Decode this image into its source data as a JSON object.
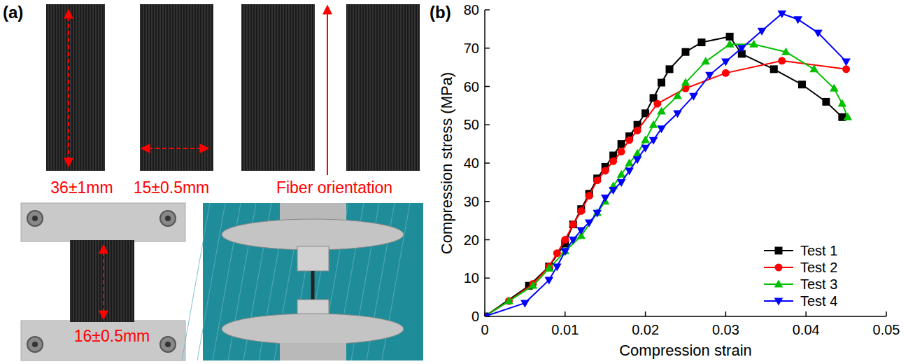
{
  "panels": {
    "a": "(a)",
    "b": "(b)"
  },
  "photos": {
    "length_label": "36±1mm",
    "width_label": "15±0.5mm",
    "fiber_label": "Fiber orientation",
    "gauge_label": "16±0.5mm"
  },
  "chart_data": {
    "type": "line",
    "x_label": "Compression strain",
    "y_label": "Compression stress (MPa)",
    "xlim": [
      0,
      0.05
    ],
    "xticks": [
      0,
      0.01,
      0.02,
      0.03,
      0.04,
      0.05
    ],
    "ylim": [
      0,
      80
    ],
    "yticks": [
      0,
      10,
      20,
      30,
      40,
      50,
      60,
      70,
      80
    ],
    "grid": false,
    "legend": "lower right",
    "series": [
      {
        "name": "Test 1",
        "color": "#000000",
        "marker": "square",
        "line_style": "solid",
        "x": [
          0,
          0.0055,
          0.008,
          0.01,
          0.011,
          0.012,
          0.013,
          0.014,
          0.015,
          0.016,
          0.017,
          0.018,
          0.019,
          0.02,
          0.021,
          0.022,
          0.023,
          0.025,
          0.027,
          0.0305,
          0.032,
          0.036,
          0.0395,
          0.0425,
          0.0445
        ],
        "values": [
          0,
          8,
          13,
          19,
          24,
          28,
          32,
          36,
          39,
          42,
          45,
          47,
          50,
          53,
          57,
          61,
          64.5,
          69,
          71.5,
          73,
          68.5,
          64.5,
          60.5,
          56,
          52
        ]
      },
      {
        "name": "Test 2",
        "color": "#ff0000",
        "marker": "circle",
        "line_style": "solid",
        "x": [
          0,
          0.003,
          0.006,
          0.008,
          0.009,
          0.01,
          0.011,
          0.012,
          0.013,
          0.014,
          0.015,
          0.016,
          0.017,
          0.018,
          0.019,
          0.0215,
          0.025,
          0.03,
          0.037,
          0.045
        ],
        "values": [
          0,
          4,
          8.5,
          13,
          16.5,
          20,
          24,
          27.5,
          31.5,
          35.5,
          38,
          40.5,
          43,
          46,
          48.5,
          55.5,
          59.5,
          63.5,
          66.7,
          64.5
        ]
      },
      {
        "name": "Test 3",
        "color": "#00c000",
        "marker": "triangle-up",
        "line_style": "solid",
        "x": [
          0,
          0.003,
          0.006,
          0.008,
          0.01,
          0.012,
          0.014,
          0.015,
          0.016,
          0.017,
          0.018,
          0.019,
          0.02,
          0.021,
          0.022,
          0.024,
          0.025,
          0.0275,
          0.0305,
          0.0335,
          0.0375,
          0.041,
          0.0435,
          0.0445,
          0.0452
        ],
        "values": [
          0,
          4,
          8,
          12.5,
          17,
          21,
          27,
          30,
          34,
          37,
          40,
          42.5,
          46,
          50,
          53.5,
          57.5,
          61,
          66.5,
          71,
          71,
          69,
          64.5,
          59.5,
          55.5,
          52
        ]
      },
      {
        "name": "Test 4",
        "color": "#0000ff",
        "marker": "triangle-down",
        "line_style": "solid",
        "x": [
          0,
          0.005,
          0.008,
          0.009,
          0.01,
          0.011,
          0.012,
          0.013,
          0.014,
          0.015,
          0.016,
          0.017,
          0.018,
          0.019,
          0.02,
          0.021,
          0.022,
          0.024,
          0.026,
          0.028,
          0.03,
          0.032,
          0.0345,
          0.037,
          0.039,
          0.0415,
          0.045
        ],
        "values": [
          0,
          3.5,
          9.5,
          13,
          17,
          20,
          22.5,
          24.5,
          27,
          31,
          33,
          35,
          38,
          41,
          44,
          46,
          49,
          53,
          57.5,
          63,
          66.5,
          70,
          74.5,
          79,
          77.5,
          74,
          66.5
        ]
      }
    ]
  }
}
